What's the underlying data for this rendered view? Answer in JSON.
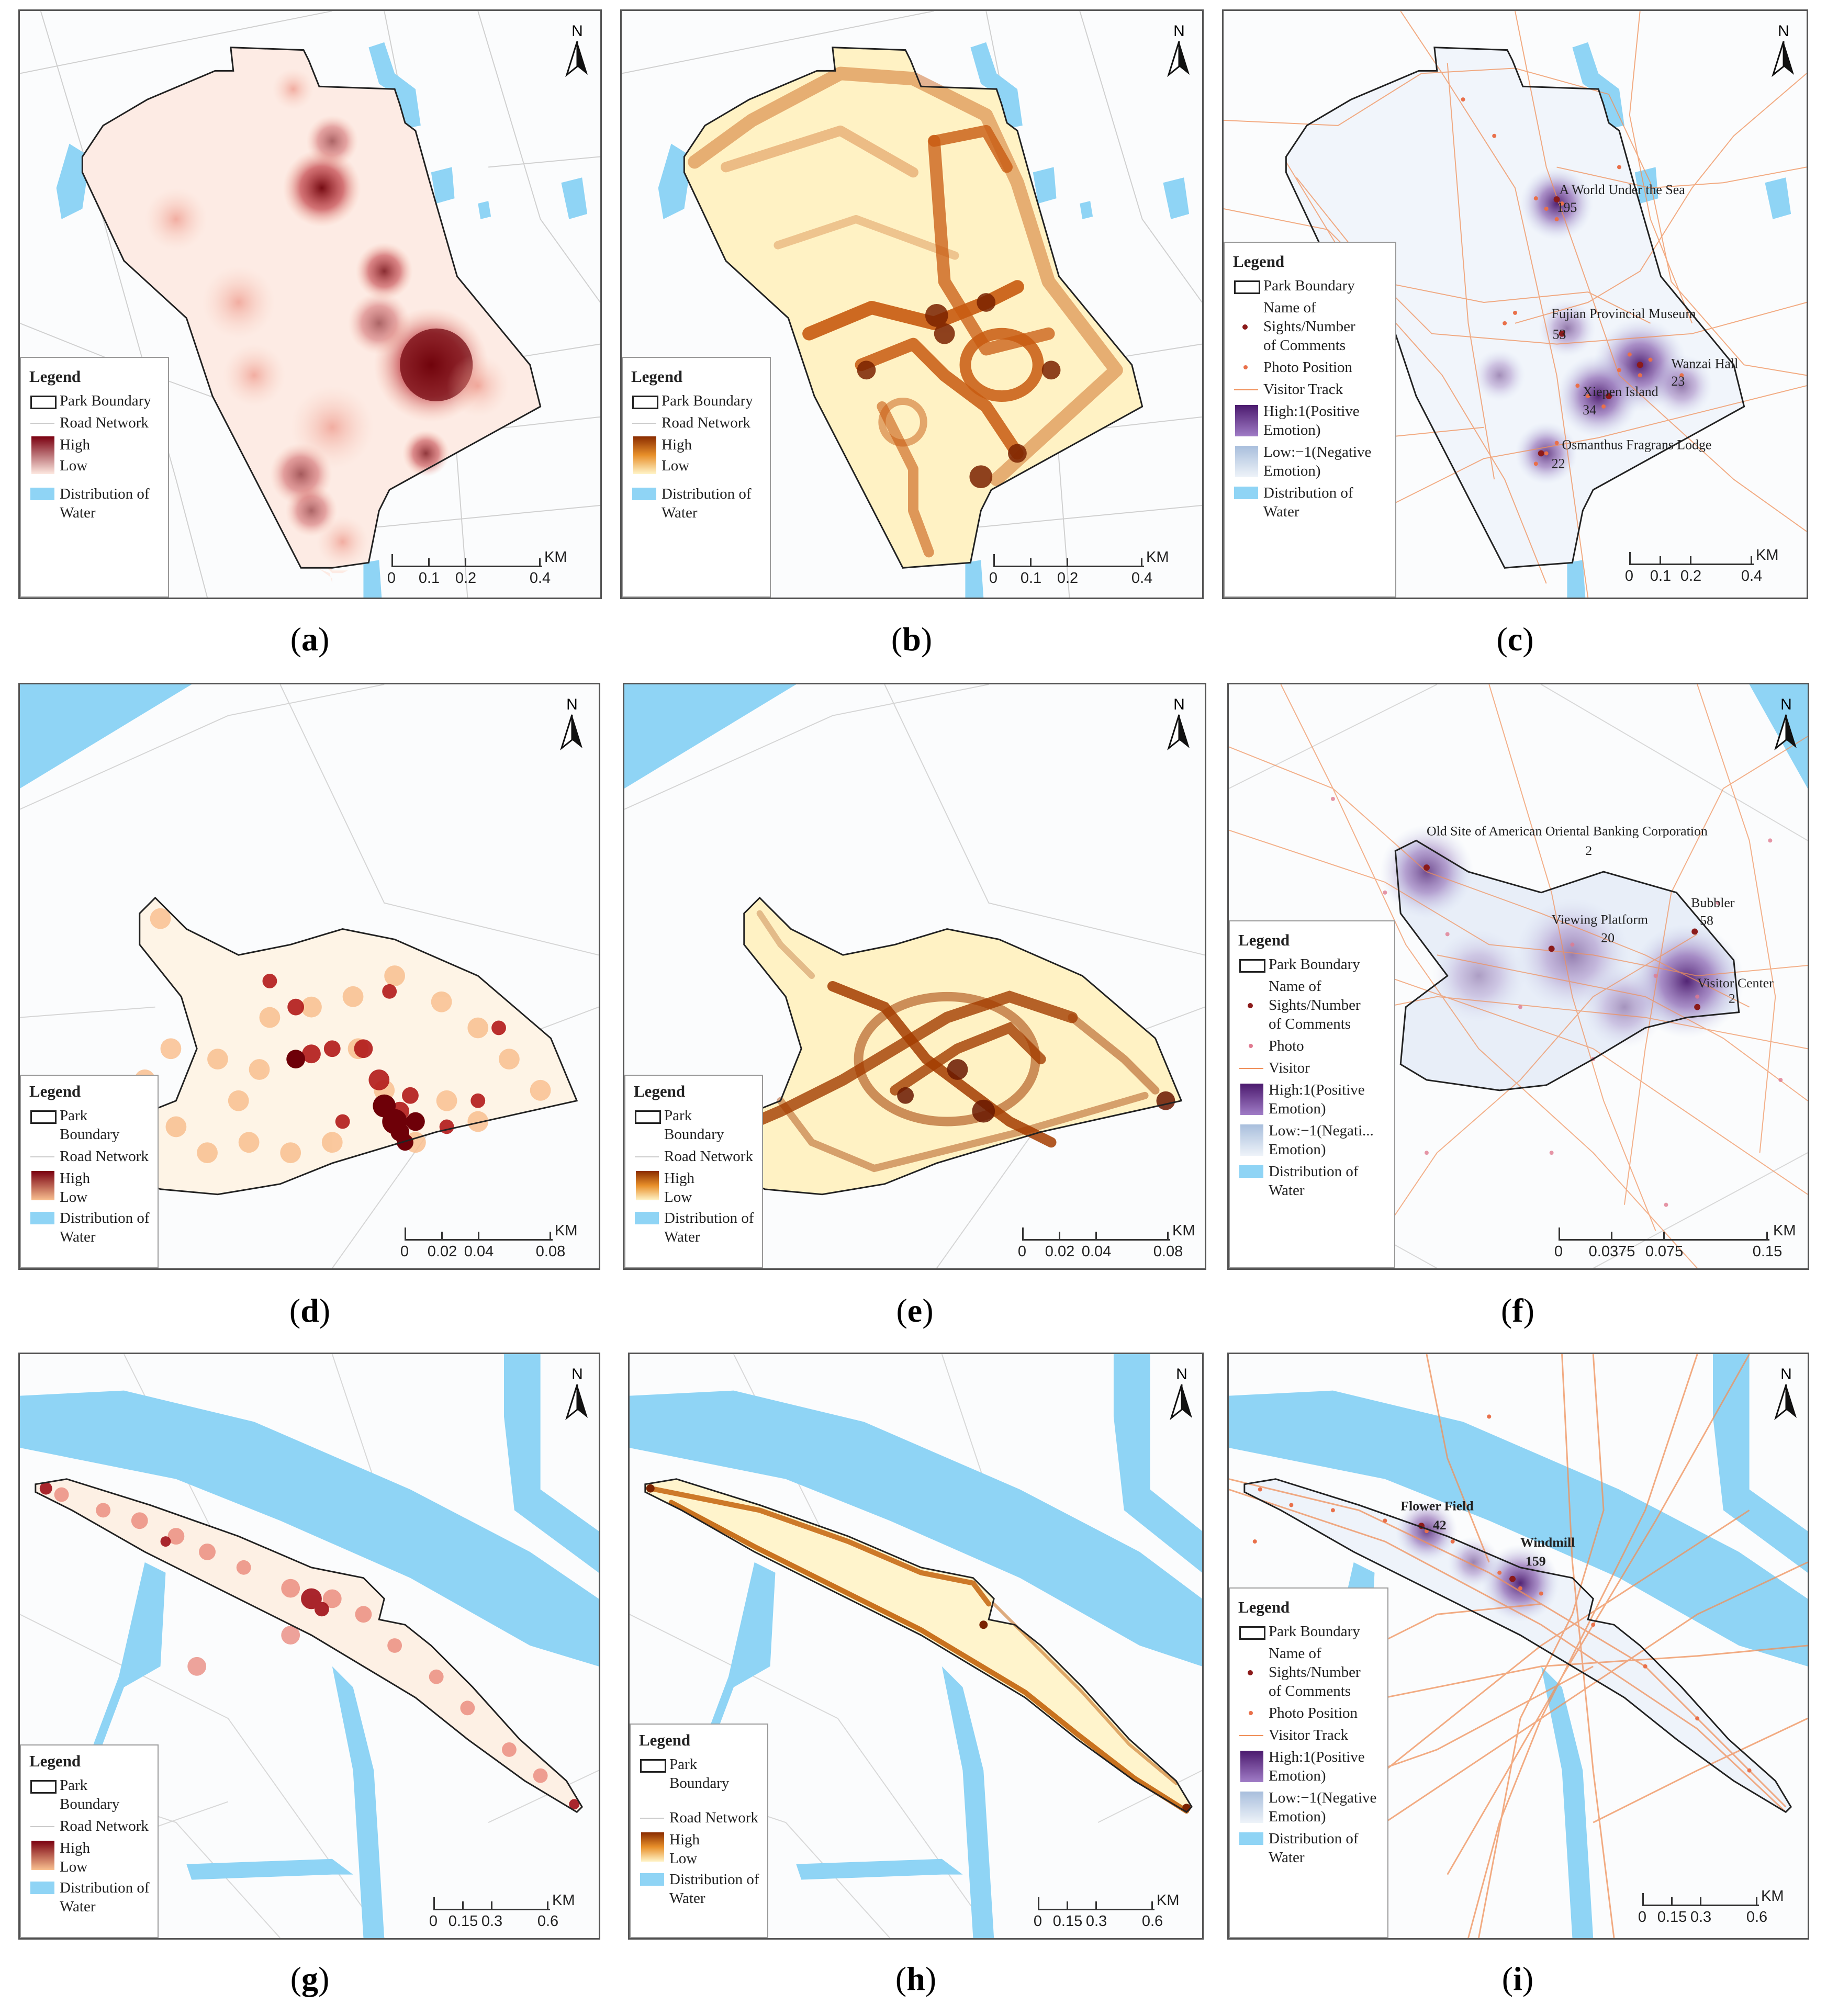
{
  "colors": {
    "water": "#8fd4f5",
    "heat_red_high": "#7a0010",
    "heat_red_low": "#fde8e0",
    "heat_orange_high": "#8a2c00",
    "heat_orange_low": "#fff4c8",
    "emotion_high": "#4b1a6e",
    "emotion_low": "#d8e4f2",
    "track": "#f0905a",
    "photo": "#e9704a",
    "sight": "#8b1a1a",
    "road": "#c8c8c8"
  },
  "common": {
    "north": "N",
    "legend_title": "Legend",
    "park_boundary": "Park Boundary",
    "road_network": "Road Network",
    "high": "High",
    "low": "Low",
    "water": "Distribution of\nWater",
    "sights": "Name of\nSights/Number\nof Comments",
    "photo_position": "Photo Position",
    "visitor_track": "Visitor Track",
    "emotion_high": "High:1(Positive\nEmotion)",
    "emotion_low": "Low:−1(Negative\nEmotion)",
    "scale_unit": "KM"
  },
  "panels": {
    "a": {
      "caption": "a",
      "scale": [
        "0",
        "0.1",
        "0.2",
        "0.4"
      ]
    },
    "b": {
      "caption": "b",
      "scale": [
        "0",
        "0.1",
        "0.2",
        "0.4"
      ]
    },
    "c": {
      "caption": "c",
      "scale": [
        "0",
        "0.1",
        "0.2",
        "0.4"
      ],
      "labels": [
        {
          "name": "A World Under the Sea",
          "count": "195"
        },
        {
          "name": "Fujian Provincial Museum",
          "count": "53"
        },
        {
          "name": "Wanzai Hall",
          "count": "23"
        },
        {
          "name": "Xiepen Island",
          "count": "34"
        },
        {
          "name": "Osmanthus Fragrans Lodge",
          "count": "22"
        }
      ]
    },
    "d": {
      "caption": "d",
      "scale": [
        "0",
        "0.02",
        "0.04",
        "0.08"
      ]
    },
    "e": {
      "caption": "e",
      "scale": [
        "0",
        "0.02",
        "0.04",
        "0.08"
      ]
    },
    "f": {
      "caption": "f",
      "scale": [
        "0",
        "0.0375",
        "0.075",
        "0.15"
      ],
      "photo": "Photo",
      "visitor": "Visitor",
      "emotion_low": "Low:−1(Negati...\nEmotion)",
      "labels": [
        {
          "name": "Old Site of American Oriental Banking Corporation",
          "count": "2"
        },
        {
          "name": "Bubbler",
          "count": "58"
        },
        {
          "name": "Viewing Platform",
          "count": "20"
        },
        {
          "name": "Visitor Center",
          "count": "2"
        }
      ]
    },
    "g": {
      "caption": "g",
      "scale": [
        "0",
        "0.15",
        "0.3",
        "0.6"
      ]
    },
    "h": {
      "caption": "h",
      "scale": [
        "0",
        "0.15",
        "0.3",
        "0.6"
      ]
    },
    "i": {
      "caption": "i",
      "scale": [
        "0",
        "0.15",
        "0.3",
        "0.6"
      ],
      "labels": [
        {
          "name": "Flower Field",
          "count": "42"
        },
        {
          "name": "Windmill",
          "count": "159"
        }
      ]
    }
  }
}
